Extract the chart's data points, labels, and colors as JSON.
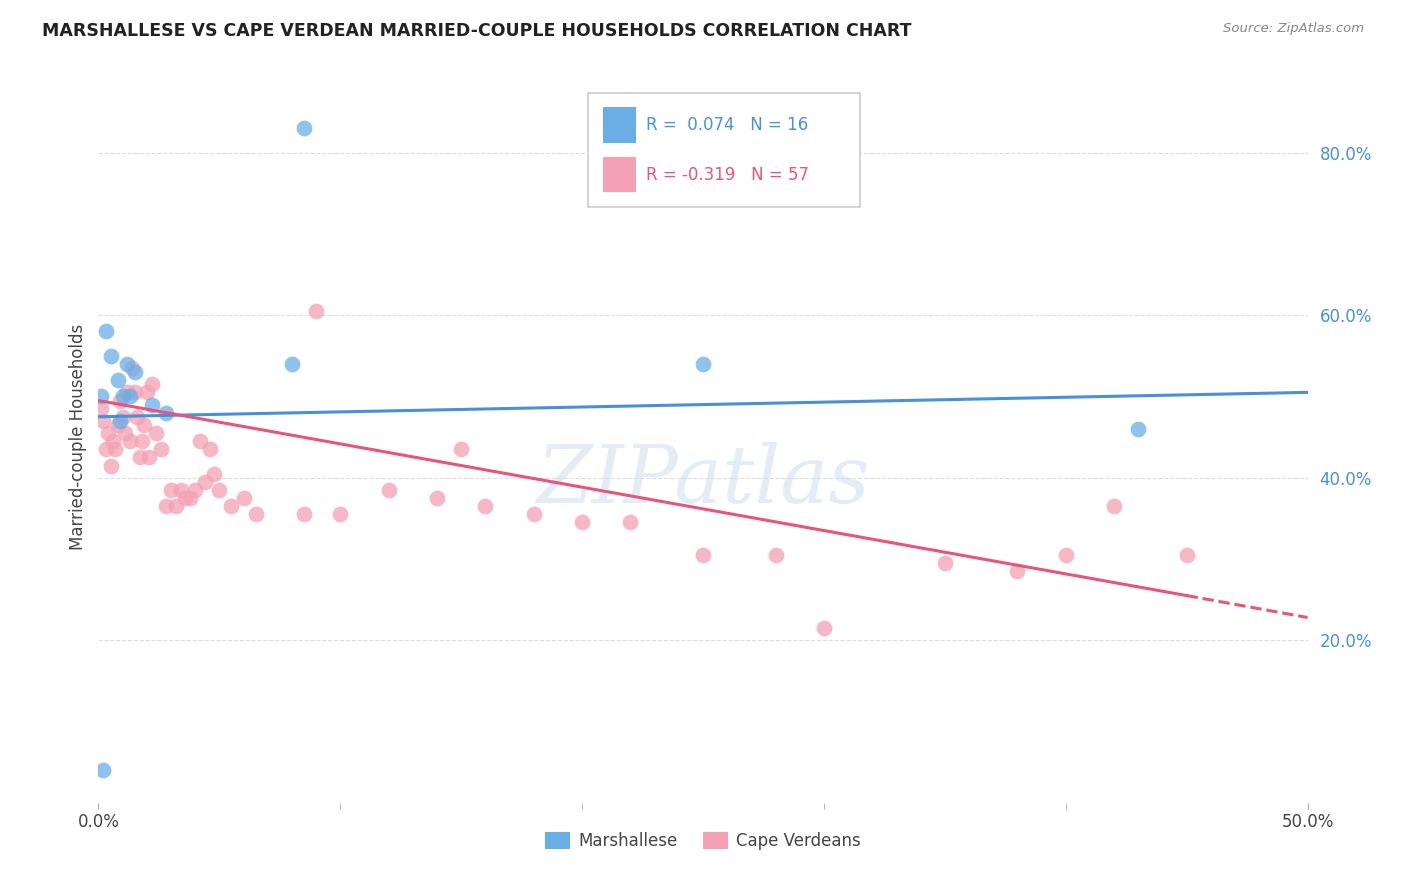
{
  "title": "MARSHALLESE VS CAPE VERDEAN MARRIED-COUPLE HOUSEHOLDS CORRELATION CHART",
  "source": "Source: ZipAtlas.com",
  "ylabel": "Married-couple Households",
  "yticks": [
    0.2,
    0.4,
    0.6,
    0.8
  ],
  "ytick_labels": [
    "20.0%",
    "40.0%",
    "60.0%",
    "80.0%"
  ],
  "xlim": [
    0.0,
    0.5
  ],
  "ylim": [
    0.0,
    0.9
  ],
  "marshallese_color": "#6aaee6",
  "cape_verdean_color": "#f4a0b5",
  "marshallese_line_color": "#4a90d9",
  "cape_verdean_line_color": "#e8547a",
  "watermark": "ZIPatlas",
  "grid_color": "#dddddd",
  "background_color": "#ffffff",
  "marshallese_x": [
    0.001,
    0.003,
    0.005,
    0.008,
    0.009,
    0.01,
    0.012,
    0.015,
    0.022,
    0.028,
    0.08,
    0.25,
    0.43,
    0.002,
    0.013,
    0.085
  ],
  "marshallese_y": [
    0.5,
    0.58,
    0.55,
    0.52,
    0.47,
    0.5,
    0.54,
    0.53,
    0.49,
    0.48,
    0.54,
    0.54,
    0.46,
    0.04,
    0.5,
    0.83
  ],
  "cape_verdean_x": [
    0.001,
    0.002,
    0.003,
    0.004,
    0.005,
    0.006,
    0.007,
    0.008,
    0.009,
    0.01,
    0.011,
    0.012,
    0.013,
    0.014,
    0.015,
    0.016,
    0.017,
    0.018,
    0.019,
    0.02,
    0.021,
    0.022,
    0.024,
    0.026,
    0.028,
    0.03,
    0.032,
    0.034,
    0.036,
    0.038,
    0.04,
    0.042,
    0.044,
    0.046,
    0.048,
    0.05,
    0.055,
    0.06,
    0.065,
    0.085,
    0.09,
    0.1,
    0.12,
    0.14,
    0.16,
    0.18,
    0.2,
    0.22,
    0.25,
    0.28,
    0.3,
    0.35,
    0.38,
    0.4,
    0.42,
    0.45,
    0.15
  ],
  "cape_verdean_y": [
    0.485,
    0.47,
    0.435,
    0.455,
    0.415,
    0.445,
    0.435,
    0.465,
    0.495,
    0.475,
    0.455,
    0.505,
    0.445,
    0.535,
    0.505,
    0.475,
    0.425,
    0.445,
    0.465,
    0.505,
    0.425,
    0.515,
    0.455,
    0.435,
    0.365,
    0.385,
    0.365,
    0.385,
    0.375,
    0.375,
    0.385,
    0.445,
    0.395,
    0.435,
    0.405,
    0.385,
    0.365,
    0.375,
    0.355,
    0.355,
    0.605,
    0.355,
    0.385,
    0.375,
    0.365,
    0.355,
    0.345,
    0.345,
    0.305,
    0.305,
    0.215,
    0.295,
    0.285,
    0.305,
    0.365,
    0.305,
    0.435
  ],
  "marsh_line_x0": 0.0,
  "marsh_line_x1": 0.5,
  "marsh_line_y0": 0.475,
  "marsh_line_y1": 0.505,
  "cv_line_x0": 0.0,
  "cv_line_x1": 0.45,
  "cv_line_x1_dash": 0.5,
  "cv_line_y0": 0.495,
  "cv_line_y1": 0.255,
  "cv_line_y1_dash": 0.228
}
